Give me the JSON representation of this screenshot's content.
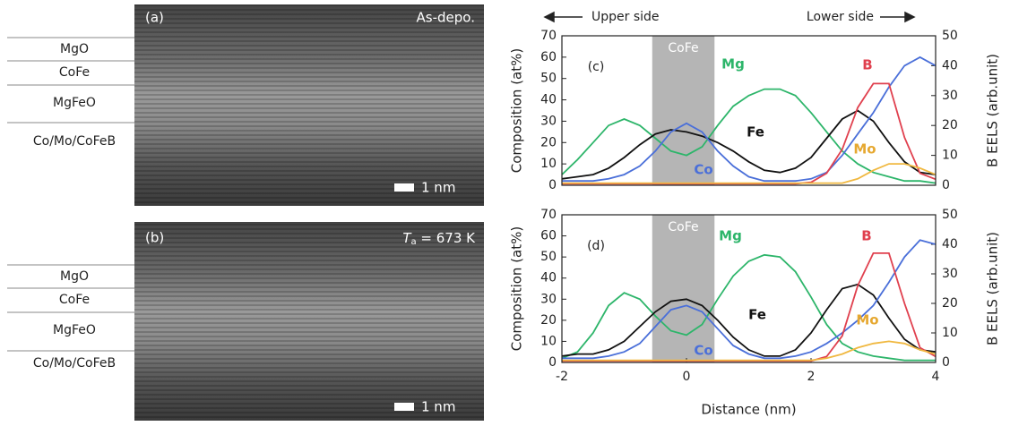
{
  "layers": [
    [
      "MgO",
      "CoFe",
      "MgFeO",
      "Co/Mo/CoFeB"
    ],
    [
      "MgO",
      "CoFe",
      "MgFeO",
      "Co/Mo/CoFeB"
    ]
  ],
  "panels": [
    {
      "label": "(a)",
      "annotation": "As-depo.",
      "scale": "1 nm"
    },
    {
      "label": "(b)",
      "symbol": "T",
      "subscript": "a",
      "annotation": " = 673 K",
      "scale": "1 nm"
    }
  ],
  "chart_data": [
    {
      "type": "line",
      "panel": "(c)",
      "annotations": [
        "Upper side",
        "Lower side"
      ],
      "band": {
        "label": "CoFe",
        "range": [
          -0.55,
          0.45
        ]
      },
      "y_label": "Composition (at%)",
      "y2_label": "B EELS (arb.unit)",
      "x": [
        -2,
        -1.75,
        -1.5,
        -1.25,
        -1,
        -0.75,
        -0.5,
        -0.25,
        0,
        0.25,
        0.5,
        0.75,
        1,
        1.25,
        1.5,
        1.75,
        2,
        2.25,
        2.5,
        2.75,
        3,
        3.25,
        3.5,
        3.75,
        4
      ],
      "xlim": [
        -2,
        4
      ],
      "ylim": [
        0,
        70
      ],
      "yticks": [
        0,
        10,
        20,
        30,
        40,
        50,
        60,
        70
      ],
      "y2lim": [
        0,
        50
      ],
      "y2ticks": [
        0,
        10,
        20,
        30,
        40,
        50
      ],
      "series": [
        {
          "name": "Mg",
          "color": "#2db56a",
          "values": [
            5,
            12,
            20,
            28,
            31,
            28,
            22,
            16,
            14,
            18,
            28,
            37,
            42,
            45,
            45,
            42,
            34,
            25,
            16,
            10,
            6,
            4,
            2,
            2,
            1
          ]
        },
        {
          "name": "Fe",
          "color": "#111111",
          "values": [
            3,
            4,
            5,
            8,
            13,
            19,
            24,
            26,
            25,
            23,
            20,
            16,
            11,
            7,
            6,
            8,
            13,
            22,
            31,
            35,
            30,
            20,
            11,
            6,
            5
          ]
        },
        {
          "name": "Co",
          "color": "#4a6fd9",
          "values": [
            2,
            2,
            2,
            3,
            5,
            9,
            16,
            25,
            29,
            25,
            16,
            9,
            4,
            2,
            2,
            2,
            3,
            6,
            14,
            24,
            34,
            46,
            56,
            60,
            56
          ]
        },
        {
          "name": "B",
          "color": "#e0404e",
          "axis": "y2",
          "values": [
            0.5,
            0.5,
            0.5,
            0.5,
            0.5,
            0.5,
            0.5,
            0.5,
            0.5,
            0.5,
            0.5,
            0.5,
            0.5,
            0.5,
            0.5,
            0.5,
            1,
            4,
            12,
            26,
            34,
            34,
            16,
            4,
            2
          ]
        },
        {
          "name": "Mo",
          "color": "#f0b840",
          "values": [
            1,
            1,
            1,
            1,
            1,
            1,
            1,
            1,
            1,
            1,
            1,
            1,
            1,
            1,
            1,
            1,
            1,
            1,
            1,
            3,
            7,
            10,
            10,
            8,
            5
          ]
        }
      ]
    },
    {
      "type": "line",
      "panel": "(d)",
      "band": {
        "label": "CoFe",
        "range": [
          -0.55,
          0.45
        ]
      },
      "x_label": "Distance (nm)",
      "y_label": "Composition (at%)",
      "y2_label": "B EELS (arb.unit)",
      "x": [
        -2,
        -1.75,
        -1.5,
        -1.25,
        -1,
        -0.75,
        -0.5,
        -0.25,
        0,
        0.25,
        0.5,
        0.75,
        1,
        1.25,
        1.5,
        1.75,
        2,
        2.25,
        2.5,
        2.75,
        3,
        3.25,
        3.5,
        3.75,
        4
      ],
      "xlim": [
        -2,
        4
      ],
      "xticks": [
        -2,
        0,
        2,
        4
      ],
      "ylim": [
        0,
        70
      ],
      "yticks": [
        0,
        10,
        20,
        30,
        40,
        50,
        60,
        70
      ],
      "y2lim": [
        0,
        50
      ],
      "y2ticks": [
        0,
        10,
        20,
        30,
        40,
        50
      ],
      "series": [
        {
          "name": "Mg",
          "color": "#2db56a",
          "values": [
            2,
            5,
            14,
            27,
            33,
            30,
            22,
            15,
            13,
            18,
            30,
            41,
            48,
            51,
            50,
            43,
            31,
            18,
            9,
            5,
            3,
            2,
            1,
            1,
            1
          ]
        },
        {
          "name": "Fe",
          "color": "#111111",
          "values": [
            3,
            4,
            4,
            6,
            10,
            17,
            24,
            29,
            30,
            27,
            20,
            12,
            6,
            3,
            3,
            6,
            14,
            25,
            35,
            37,
            32,
            21,
            11,
            6,
            5
          ]
        },
        {
          "name": "Co",
          "color": "#4a6fd9",
          "values": [
            2,
            2,
            2,
            3,
            5,
            9,
            17,
            25,
            27,
            24,
            16,
            8,
            4,
            2,
            2,
            3,
            5,
            9,
            14,
            20,
            27,
            38,
            50,
            58,
            56
          ]
        },
        {
          "name": "B",
          "color": "#e0404e",
          "axis": "y2",
          "values": [
            0.5,
            0.5,
            0.5,
            0.5,
            0.5,
            0.5,
            0.5,
            0.5,
            0.5,
            0.5,
            0.5,
            0.5,
            0.5,
            0.5,
            0.5,
            0.5,
            0.5,
            2,
            9,
            26,
            37,
            37,
            20,
            5,
            2
          ]
        },
        {
          "name": "Mo",
          "color": "#f0b840",
          "values": [
            1,
            1,
            1,
            1,
            1,
            1,
            1,
            1,
            1,
            1,
            1,
            1,
            1,
            1,
            1,
            1,
            1,
            2,
            4,
            7,
            9,
            10,
            9,
            6,
            4
          ]
        }
      ]
    }
  ]
}
